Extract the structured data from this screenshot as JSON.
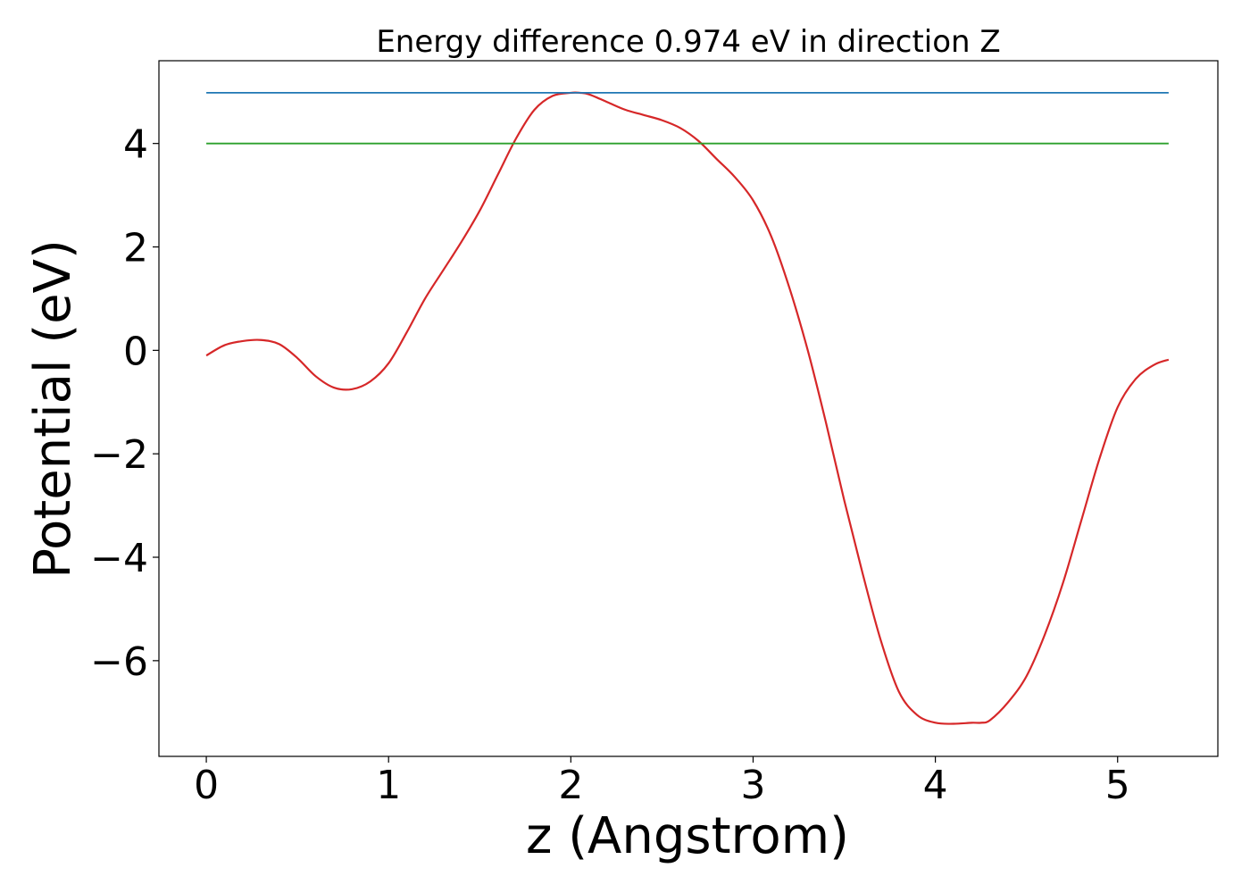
{
  "chart_data": {
    "type": "line",
    "title": "Energy difference 0.974 eV in direction Z",
    "xlabel": "z (Angstrom)",
    "ylabel": "Potential (eV)",
    "xlim": [
      -0.26,
      5.55
    ],
    "ylim": [
      -7.85,
      5.6
    ],
    "xticks": [
      0,
      1,
      2,
      3,
      4,
      5
    ],
    "xtick_labels": [
      "0",
      "1",
      "2",
      "3",
      "4",
      "5"
    ],
    "yticks": [
      4,
      2,
      0,
      -2,
      -4,
      -6
    ],
    "ytick_labels": [
      "4",
      "2",
      "0",
      "−2",
      "−4",
      "−6"
    ],
    "grid": false,
    "series": [
      {
        "color": "#d62728",
        "x": [
          0,
          0.1,
          0.2,
          0.3,
          0.4,
          0.5,
          0.6,
          0.7,
          0.8,
          0.9,
          1.0,
          1.1,
          1.2,
          1.3,
          1.4,
          1.5,
          1.6,
          1.7,
          1.8,
          1.9,
          2.0,
          2.05,
          2.1,
          2.2,
          2.3,
          2.4,
          2.5,
          2.6,
          2.7,
          2.8,
          2.9,
          3.0,
          3.1,
          3.2,
          3.3,
          3.4,
          3.5,
          3.6,
          3.7,
          3.8,
          3.9,
          4.0,
          4.1,
          4.2,
          4.25,
          4.3,
          4.4,
          4.5,
          4.6,
          4.7,
          4.8,
          4.9,
          5.0,
          5.1,
          5.2,
          5.28
        ],
        "y": [
          -0.1,
          0.1,
          0.18,
          0.2,
          0.12,
          -0.15,
          -0.5,
          -0.72,
          -0.75,
          -0.6,
          -0.25,
          0.35,
          1.0,
          1.55,
          2.1,
          2.7,
          3.4,
          4.1,
          4.65,
          4.92,
          4.98,
          4.98,
          4.95,
          4.8,
          4.65,
          4.55,
          4.45,
          4.3,
          4.05,
          3.7,
          3.35,
          2.9,
          2.2,
          1.2,
          0.0,
          -1.4,
          -2.9,
          -4.3,
          -5.6,
          -6.6,
          -7.05,
          -7.2,
          -7.22,
          -7.2,
          -7.2,
          -7.15,
          -6.8,
          -6.3,
          -5.5,
          -4.5,
          -3.3,
          -2.1,
          -1.1,
          -0.55,
          -0.28,
          -0.18
        ]
      },
      {
        "color": "#1f77b4",
        "x": [
          0,
          5.28
        ],
        "y": [
          4.98,
          4.98
        ]
      },
      {
        "color": "#2ca02c",
        "x": [
          0,
          5.28
        ],
        "y": [
          4.0,
          4.0
        ]
      }
    ]
  }
}
